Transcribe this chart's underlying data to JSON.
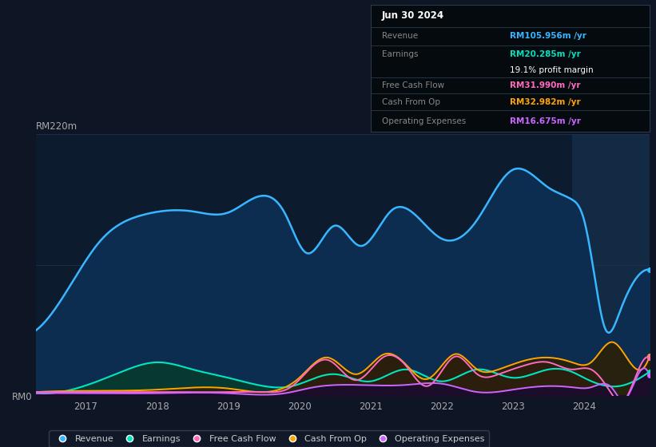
{
  "bg_color": "#0e1525",
  "plot_bg_color": "#0d1b2e",
  "title_text": "Jun 30 2024",
  "info_box_rows": [
    {
      "label": "Revenue",
      "value": "RM105.956m /yr",
      "color": "#38b6ff"
    },
    {
      "label": "Earnings",
      "value": "RM20.285m /yr",
      "color": "#00e5c0"
    },
    {
      "label": "",
      "value": "19.1% profit margin",
      "color": "#ffffff"
    },
    {
      "label": "Free Cash Flow",
      "value": "RM31.990m /yr",
      "color": "#ff6bbd"
    },
    {
      "label": "Cash From Op",
      "value": "RM32.982m /yr",
      "color": "#ffa500"
    },
    {
      "label": "Operating Expenses",
      "value": "RM16.675m /yr",
      "color": "#cc66ff"
    }
  ],
  "ylim": [
    0,
    220
  ],
  "ytick_labels": [
    "RM0",
    "RM220m"
  ],
  "xlim_start": 2016.3,
  "xlim_end": 2024.92,
  "xticks": [
    2017,
    2018,
    2019,
    2020,
    2021,
    2022,
    2023,
    2024
  ],
  "highlight_x_start": 2023.83,
  "highlight_x_end": 2024.92,
  "revenue_color": "#38b6ff",
  "revenue_fill": "#0c2d50",
  "earnings_color": "#00e5c0",
  "earnings_fill": "#083a30",
  "fcf_color": "#ff6bbd",
  "cashfromop_color": "#ffa500",
  "opex_color": "#cc66ff",
  "legend_bg": "#111827",
  "legend_border": "#333a4a"
}
